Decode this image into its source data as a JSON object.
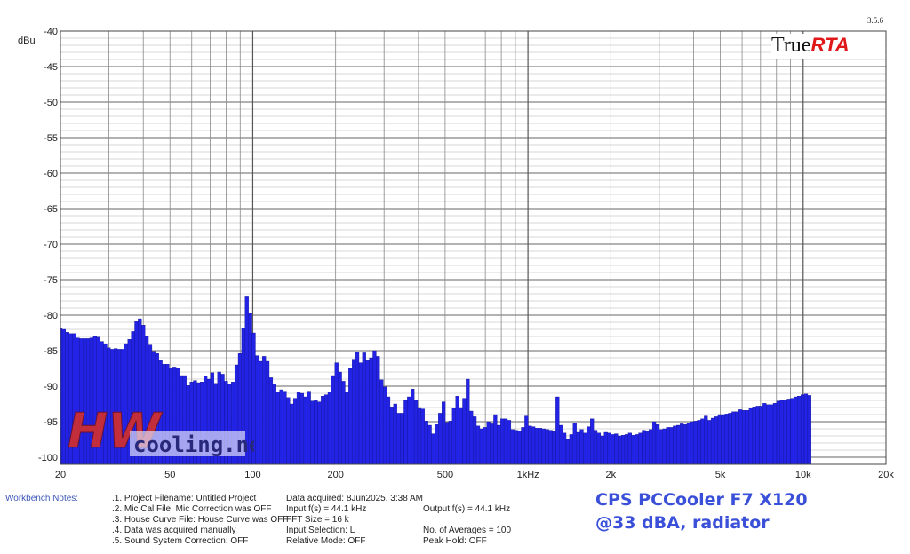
{
  "version": "3.5.6",
  "logo": {
    "part1": "True",
    "part2": "RTA"
  },
  "watermark": {
    "part1": "HW",
    "part2": "cooling.net"
  },
  "annotation": {
    "line1": "CPS PCCooler F7 X120",
    "line2": "@33 dBA, radiator"
  },
  "workbench": {
    "label": "Workbench Notes:",
    "lines": [
      [
        ".1. Project Filename: Untitled Project",
        "Data acquired: 8Jun2025, 3:38 AM",
        ""
      ],
      [
        ".2. Mic Cal File: Mic Correction was OFF",
        "Input f(s) = 44.1 kHz",
        "Output f(s) = 44.1 kHz"
      ],
      [
        ".3. House Curve File: House Curve was OFF",
        "FFT Size = 16 k",
        ""
      ],
      [
        ".4. Data was acquired manually",
        "Input Selection: L",
        "No. of Averages = 100"
      ],
      [
        ".5. Sound System Correction: OFF",
        "Relative Mode:  OFF",
        "Peak Hold: OFF"
      ]
    ]
  },
  "chart_data": {
    "type": "bar",
    "title": "",
    "xlabel": "",
    "ylabel": "dBu",
    "x_scale": "log",
    "xlim": [
      20,
      20000
    ],
    "ylim": [
      -101,
      -40
    ],
    "yticks": [
      -40,
      -45,
      -50,
      -55,
      -60,
      -65,
      -70,
      -75,
      -80,
      -85,
      -90,
      -95,
      -100
    ],
    "xticks": [
      {
        "value": 20,
        "label": "20"
      },
      {
        "value": 50,
        "label": "50"
      },
      {
        "value": 100,
        "label": "100"
      },
      {
        "value": 200,
        "label": "200"
      },
      {
        "value": 500,
        "label": "500"
      },
      {
        "value": 1000,
        "label": "1kHz"
      },
      {
        "value": 2000,
        "label": "2k"
      },
      {
        "value": 5000,
        "label": "5k"
      },
      {
        "value": 10000,
        "label": "10k"
      },
      {
        "value": 20000,
        "label": "20k"
      }
    ],
    "grid": true,
    "bar_color": "#2323e6",
    "series": [
      {
        "bands_per_octave": 24,
        "start_freq": 20,
        "values": [
          -81.9,
          -82.0,
          -82.4,
          -82.6,
          -82.6,
          -83.2,
          -83.3,
          -83.3,
          -83.3,
          -83.2,
          -83.0,
          -83.1,
          -83.7,
          -84.1,
          -84.6,
          -84.8,
          -84.7,
          -84.8,
          -84.8,
          -84.0,
          -83.4,
          -82.3,
          -80.9,
          -80.5,
          -81.4,
          -83.0,
          -84.2,
          -85.1,
          -85.4,
          -86.4,
          -86.9,
          -86.9,
          -87.5,
          -87.3,
          -87.4,
          -88.5,
          -88.5,
          -89.9,
          -89.4,
          -89.2,
          -89.5,
          -89.4,
          -88.6,
          -89.0,
          -88.1,
          -89.6,
          -88.0,
          -88.3,
          -89.3,
          -89.7,
          -89.4,
          -87.0,
          -85.4,
          -81.8,
          -77.3,
          -79.7,
          -82.5,
          -85.7,
          -86.5,
          -85.8,
          -86.5,
          -88.8,
          -89.7,
          -90.8,
          -90.5,
          -90.7,
          -91.6,
          -92.5,
          -91.7,
          -90.8,
          -91.0,
          -91.5,
          -90.7,
          -92.1,
          -91.9,
          -92.2,
          -91.4,
          -91.2,
          -90.8,
          -88.5,
          -86.7,
          -88.0,
          -89.3,
          -90.8,
          -87.5,
          -86.2,
          -85.2,
          -86.7,
          -85.3,
          -86.4,
          -86.0,
          -85.0,
          -85.8,
          -89.1,
          -90.1,
          -91.5,
          -92.9,
          -92.5,
          -93.8,
          -93.8,
          -92.0,
          -91.5,
          -90.4,
          -92.0,
          -93.0,
          -93.2,
          -94.9,
          -95.5,
          -96.7,
          -95.4,
          -93.8,
          -92.2,
          -95.1,
          -94.9,
          -93.1,
          -91.4,
          -93.0,
          -91.7,
          -89.0,
          -93.5,
          -94.3,
          -95.6,
          -96.0,
          -95.8,
          -95.0,
          -95.3,
          -94.0,
          -95.5,
          -94.6,
          -94.6,
          -94.8,
          -96.1,
          -96.2,
          -96.3,
          -95.8,
          -94.2,
          -95.6,
          -95.7,
          -95.9,
          -95.9,
          -96.0,
          -96.1,
          -96.2,
          -96.4,
          -91.5,
          -95.5,
          -96.6,
          -97.5,
          -96.8,
          -95.2,
          -96.5,
          -96.1,
          -96.6,
          -95.7,
          -94.6,
          -96.2,
          -96.6,
          -97.0,
          -96.5,
          -96.6,
          -96.8,
          -96.7,
          -97.0,
          -96.9,
          -96.8,
          -96.6,
          -96.9,
          -96.8,
          -96.6,
          -96.2,
          -96.4,
          -96.1,
          -95.0,
          -95.4,
          -96.1,
          -96.0,
          -95.8,
          -95.8,
          -95.6,
          -95.5,
          -95.3,
          -95.4,
          -95.2,
          -95.0,
          -94.9,
          -94.8,
          -94.6,
          -94.2,
          -94.8,
          -94.5,
          -94.3,
          -94.0,
          -94.0,
          -93.9,
          -93.8,
          -93.6,
          -93.6,
          -93.3,
          -93.4,
          -93.4,
          -93.1,
          -92.9,
          -92.8,
          -92.8,
          -92.4,
          -92.6,
          -92.6,
          -92.4,
          -92.1,
          -92.0,
          -91.9,
          -91.8,
          -91.7,
          -91.5,
          -91.4,
          -91.2,
          -91.1,
          -91.3
        ]
      }
    ]
  }
}
